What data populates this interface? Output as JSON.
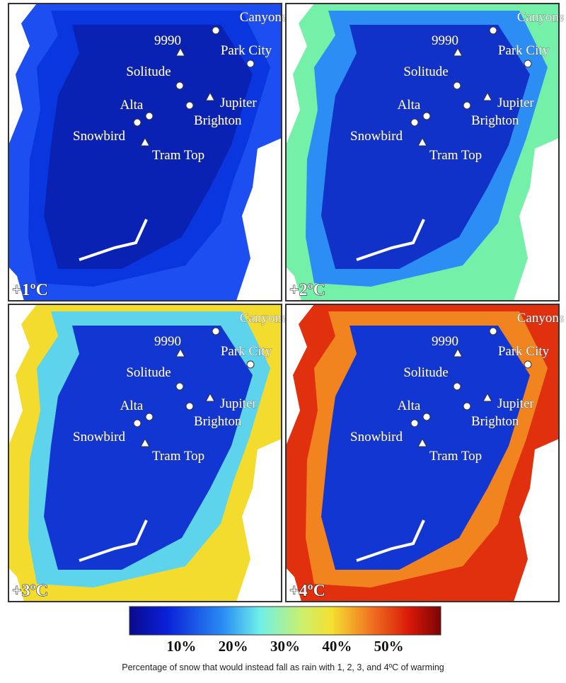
{
  "panels": [
    {
      "label": "+1ºC"
    },
    {
      "label": "+2ºC"
    },
    {
      "label": "+3ºC"
    },
    {
      "label": "+4ºC"
    }
  ],
  "places": [
    {
      "name": "Canyons",
      "marker": "circle"
    },
    {
      "name": "9990",
      "marker": "triangle"
    },
    {
      "name": "Park City",
      "marker": "circle"
    },
    {
      "name": "Solitude",
      "marker": "circle"
    },
    {
      "name": "Jupiter",
      "marker": "triangle"
    },
    {
      "name": "Brighton",
      "marker": "circle"
    },
    {
      "name": "Alta",
      "marker": "circle"
    },
    {
      "name": "Snowbird",
      "marker": "circle"
    },
    {
      "name": "Tram Top",
      "marker": "triangle"
    }
  ],
  "colorbar": {
    "range": [
      0,
      60
    ],
    "ticks": [
      {
        "value": 10,
        "label": "10%"
      },
      {
        "value": 20,
        "label": "20%"
      },
      {
        "value": 30,
        "label": "30%"
      },
      {
        "value": 40,
        "label": "40%"
      },
      {
        "value": 50,
        "label": "50%"
      }
    ]
  },
  "caption": "Percentage of snow that would instead fall as rain with 1, 2, 3, and 4ºC of warming"
}
